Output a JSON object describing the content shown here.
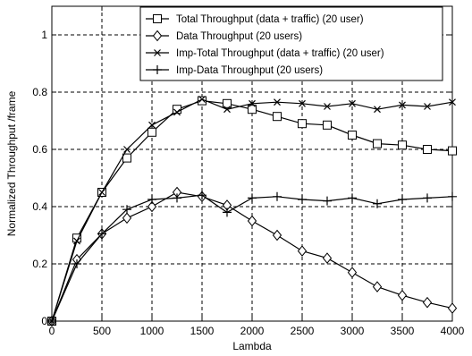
{
  "chart_data": {
    "type": "line",
    "xlabel": "Lambda",
    "ylabel": "Normalized Throughput /frame",
    "xlim": [
      0,
      4000
    ],
    "ylim": [
      0,
      1.1
    ],
    "xticks": [
      0,
      500,
      1000,
      1500,
      2000,
      2500,
      3000,
      3500,
      4000
    ],
    "yticks": [
      0,
      0.2,
      0.4,
      0.6,
      0.8,
      1
    ],
    "xtick_labels": [
      "0",
      "500",
      "1000",
      "1500",
      "2000",
      "2500",
      "3000",
      "3500",
      "4000"
    ],
    "ytick_labels": [
      "0",
      "0.2",
      "0.4",
      "0.6",
      "0.8",
      "1"
    ],
    "grid": true,
    "legend_position": "top-right",
    "x": [
      0,
      250,
      500,
      750,
      1000,
      1250,
      1500,
      1750,
      2000,
      2250,
      2500,
      2750,
      3000,
      3250,
      3500,
      3750,
      4000
    ],
    "series": [
      {
        "name": "Total Throughput (data + traffic) (20 user)",
        "marker": "square",
        "color": "#000000",
        "values": [
          0,
          0.29,
          0.45,
          0.57,
          0.66,
          0.74,
          0.77,
          0.76,
          0.74,
          0.715,
          0.69,
          0.685,
          0.65,
          0.62,
          0.615,
          0.6,
          0.595
        ]
      },
      {
        "name": "Data Throughput (20 users)",
        "marker": "diamond",
        "color": "#000000",
        "values": [
          0,
          0.215,
          0.305,
          0.36,
          0.4,
          0.45,
          0.435,
          0.405,
          0.35,
          0.3,
          0.245,
          0.22,
          0.17,
          0.12,
          0.09,
          0.065,
          0.045
        ]
      },
      {
        "name": "Imp-Total Throughput (data + traffic) (20 user)",
        "marker": "x",
        "color": "#000000",
        "values": [
          0,
          0.28,
          0.45,
          0.6,
          0.685,
          0.73,
          0.775,
          0.74,
          0.76,
          0.765,
          0.76,
          0.75,
          0.76,
          0.74,
          0.755,
          0.75,
          0.765
        ]
      },
      {
        "name": "Imp-Data Throughput (20 users)",
        "marker": "plus",
        "color": "#000000",
        "values": [
          0,
          0.2,
          0.305,
          0.39,
          0.425,
          0.43,
          0.44,
          0.38,
          0.43,
          0.435,
          0.425,
          0.42,
          0.43,
          0.41,
          0.425,
          0.43,
          0.435
        ]
      }
    ]
  }
}
